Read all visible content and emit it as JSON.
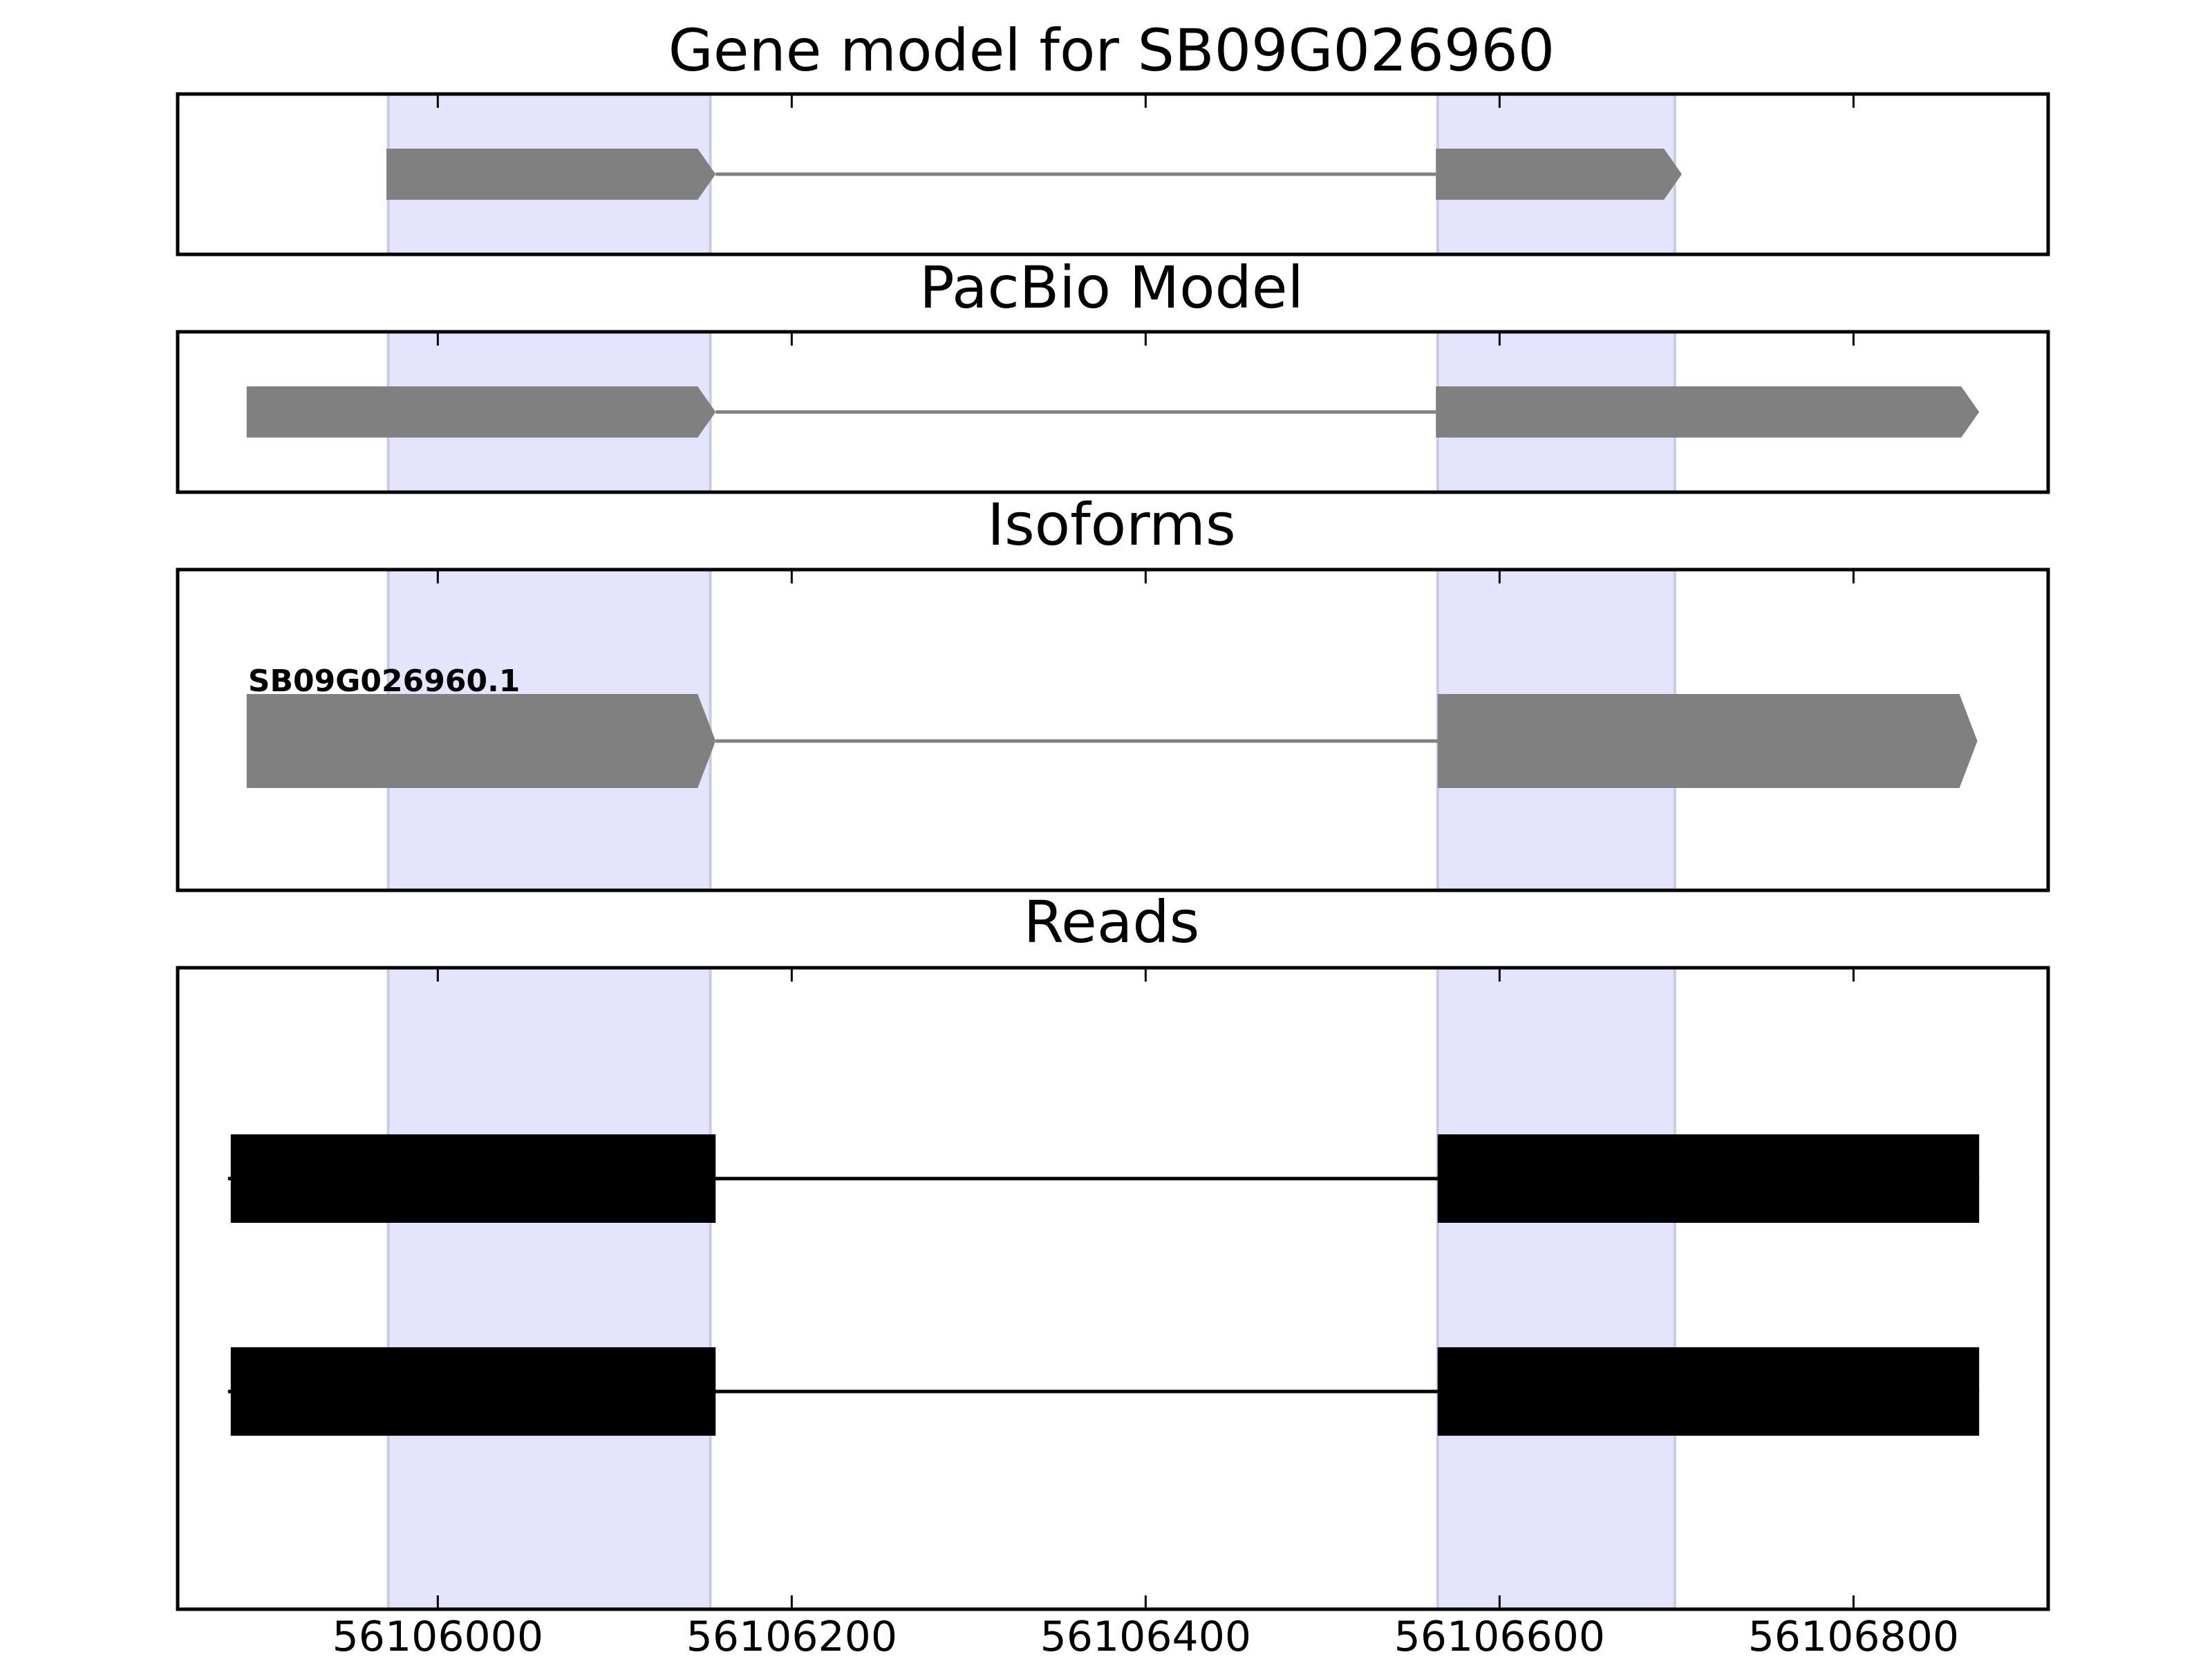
{
  "chart_data": {
    "type": "gene-model",
    "x_ticks": [
      56106000,
      56106200,
      56106400,
      56106600,
      56106800
    ],
    "highlight_regions": [
      [
        56105972,
        56106154
      ],
      [
        56106565,
        56106699
      ]
    ],
    "colors": {
      "highlight": "#e4e4fc",
      "highlight_edge": "#c9c9e8",
      "model": "#808080",
      "read": "#000000",
      "frame": "#000000"
    },
    "panels": [
      {
        "id": "gene-model",
        "title": "Gene model for SB09G026960",
        "exons": [
          [
            56105971,
            56106157
          ],
          [
            56106564,
            56106703
          ]
        ],
        "strand": "+"
      },
      {
        "id": "pacbio-model",
        "title": "PacBio Model",
        "exons": [
          [
            56105892,
            56106157
          ],
          [
            56106564,
            56106871
          ]
        ],
        "strand": "+"
      },
      {
        "id": "isoforms",
        "title": "Isoforms",
        "isoforms": [
          {
            "label": "SB09G026960.1",
            "exons": [
              [
                56105892,
                56106157
              ],
              [
                56106565,
                56106870
              ]
            ],
            "strand": "+"
          }
        ]
      },
      {
        "id": "reads",
        "title": "Reads",
        "reads": [
          {
            "exons": [
              [
                56105883,
                56106157
              ],
              [
                56106565,
                56106871
              ]
            ]
          },
          {
            "exons": [
              [
                56105883,
                56106157
              ],
              [
                56106565,
                56106871
              ]
            ]
          }
        ]
      }
    ]
  }
}
